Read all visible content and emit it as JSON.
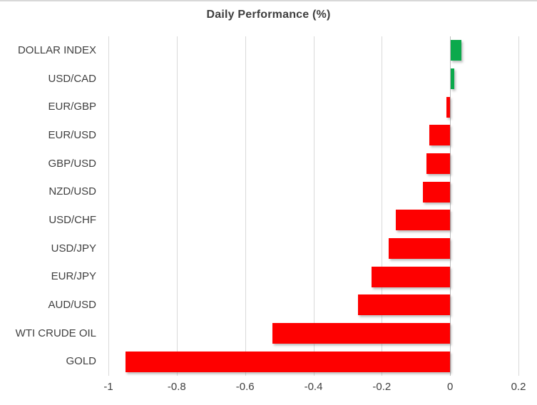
{
  "chart_data": {
    "type": "bar",
    "orientation": "horizontal",
    "title": "Daily Performance (%)",
    "categories": [
      "DOLLAR INDEX",
      "USD/CAD",
      "EUR/GBP",
      "EUR/USD",
      "GBP/USD",
      "NZD/USD",
      "USD/CHF",
      "USD/JPY",
      "EUR/JPY",
      "AUD/USD",
      "WTI CRUDE OIL",
      "GOLD"
    ],
    "values": [
      0.03,
      0.01,
      -0.01,
      -0.06,
      -0.07,
      -0.08,
      -0.16,
      -0.18,
      -0.23,
      -0.27,
      -0.52,
      -0.95
    ],
    "xlabel": "",
    "ylabel": "",
    "xlim": [
      -1,
      0.2
    ],
    "xticks": [
      -1,
      -0.8,
      -0.6,
      -0.4,
      -0.2,
      0,
      0.2
    ],
    "xtick_labels": [
      "-1",
      "-0.8",
      "-0.6",
      "-0.4",
      "-0.2",
      "0",
      "0.2"
    ],
    "grid": true,
    "legend": false,
    "positive_color": "#0ca94c",
    "negative_color": "#fe0000"
  }
}
